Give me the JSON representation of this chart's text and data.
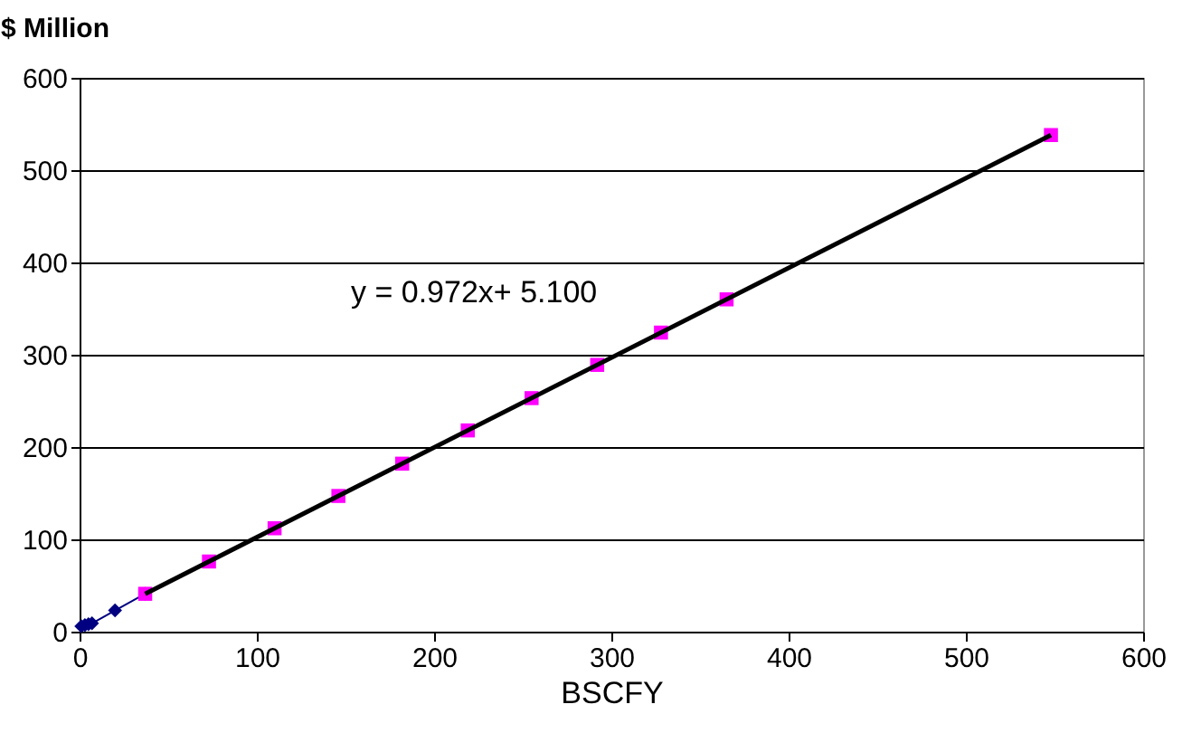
{
  "chart_data": {
    "type": "line",
    "xlabel": "BSCFY",
    "ylabel": "$ Million",
    "xlim": [
      0,
      600
    ],
    "xticks": [
      0,
      100,
      200,
      300,
      400,
      500,
      600
    ],
    "ylim": [
      0,
      600
    ],
    "yticks": [
      0,
      100,
      200,
      300,
      400,
      500,
      600
    ],
    "grid": "y",
    "annotations": [
      "y = 0.972x+ 5.100"
    ],
    "series": [
      {
        "color": "#000080",
        "marker": "diamond",
        "x": [
          1,
          3,
          5,
          7,
          20,
          37
        ],
        "values": [
          6,
          7,
          8,
          9,
          23,
          41
        ]
      },
      {
        "type": "scatter",
        "color": "#ff00ff",
        "marker": "square",
        "x": [
          37,
          73,
          110,
          146,
          182,
          219,
          255,
          292,
          328,
          365,
          548
        ],
        "values": [
          41,
          76,
          112,
          147,
          182,
          218,
          253,
          289,
          324,
          360,
          538
        ]
      },
      {
        "color": "#000000",
        "marker": "none",
        "x": [
          37,
          548
        ],
        "values": [
          41,
          538
        ]
      }
    ]
  }
}
